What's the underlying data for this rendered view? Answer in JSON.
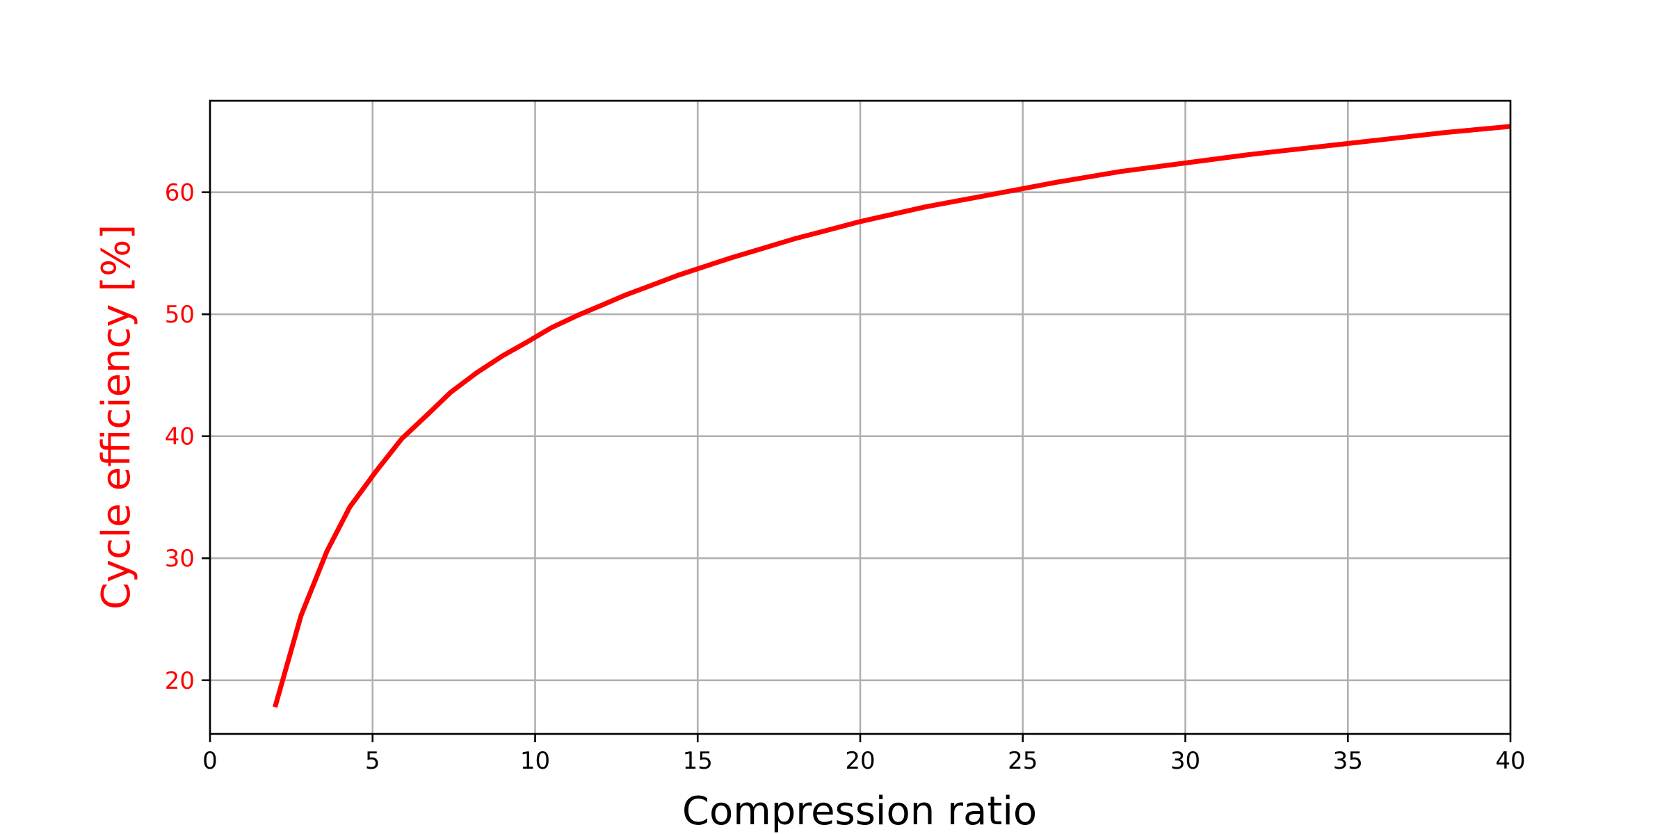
{
  "chart_data": {
    "type": "line",
    "title": "",
    "xlabel": "Compression ratio",
    "ylabel": "Cycle efficiency [%]",
    "xlim": [
      0,
      40
    ],
    "ylim": [
      15.6,
      67.5
    ],
    "x_ticks": [
      0,
      5,
      10,
      15,
      20,
      25,
      30,
      35,
      40
    ],
    "y_ticks": [
      20,
      30,
      40,
      50,
      60
    ],
    "grid": true,
    "legend": "none",
    "series": [
      {
        "color": "#ff0000",
        "x": [
          2,
          2.8,
          3.6,
          4.3,
          5.1,
          5.9,
          6.7,
          7.4,
          8.2,
          9.0,
          9.8,
          10.5,
          11.3,
          12.1,
          12.8,
          13.6,
          14.4,
          15.2,
          16.0,
          17.0,
          18.0,
          19.0,
          20.0,
          22.0,
          24.0,
          25.0,
          26.0,
          28.0,
          30.0,
          32.0,
          34.0,
          36.0,
          38.0,
          40.0
        ],
        "y": [
          17.8,
          25.3,
          30.6,
          34.2,
          37.1,
          39.8,
          41.8,
          43.6,
          45.2,
          46.6,
          47.8,
          48.9,
          49.9,
          50.8,
          51.6,
          52.4,
          53.2,
          53.9,
          54.6,
          55.4,
          56.2,
          56.9,
          57.6,
          58.8,
          59.8,
          60.3,
          60.8,
          61.7,
          62.4,
          63.1,
          63.7,
          64.3,
          64.9,
          65.4
        ]
      }
    ],
    "colors": {
      "line": "#ff0000",
      "ylabel": "#ff0000",
      "ytick": "#ff0000",
      "grid": "#b0b0b0",
      "axes": "#000000"
    }
  }
}
